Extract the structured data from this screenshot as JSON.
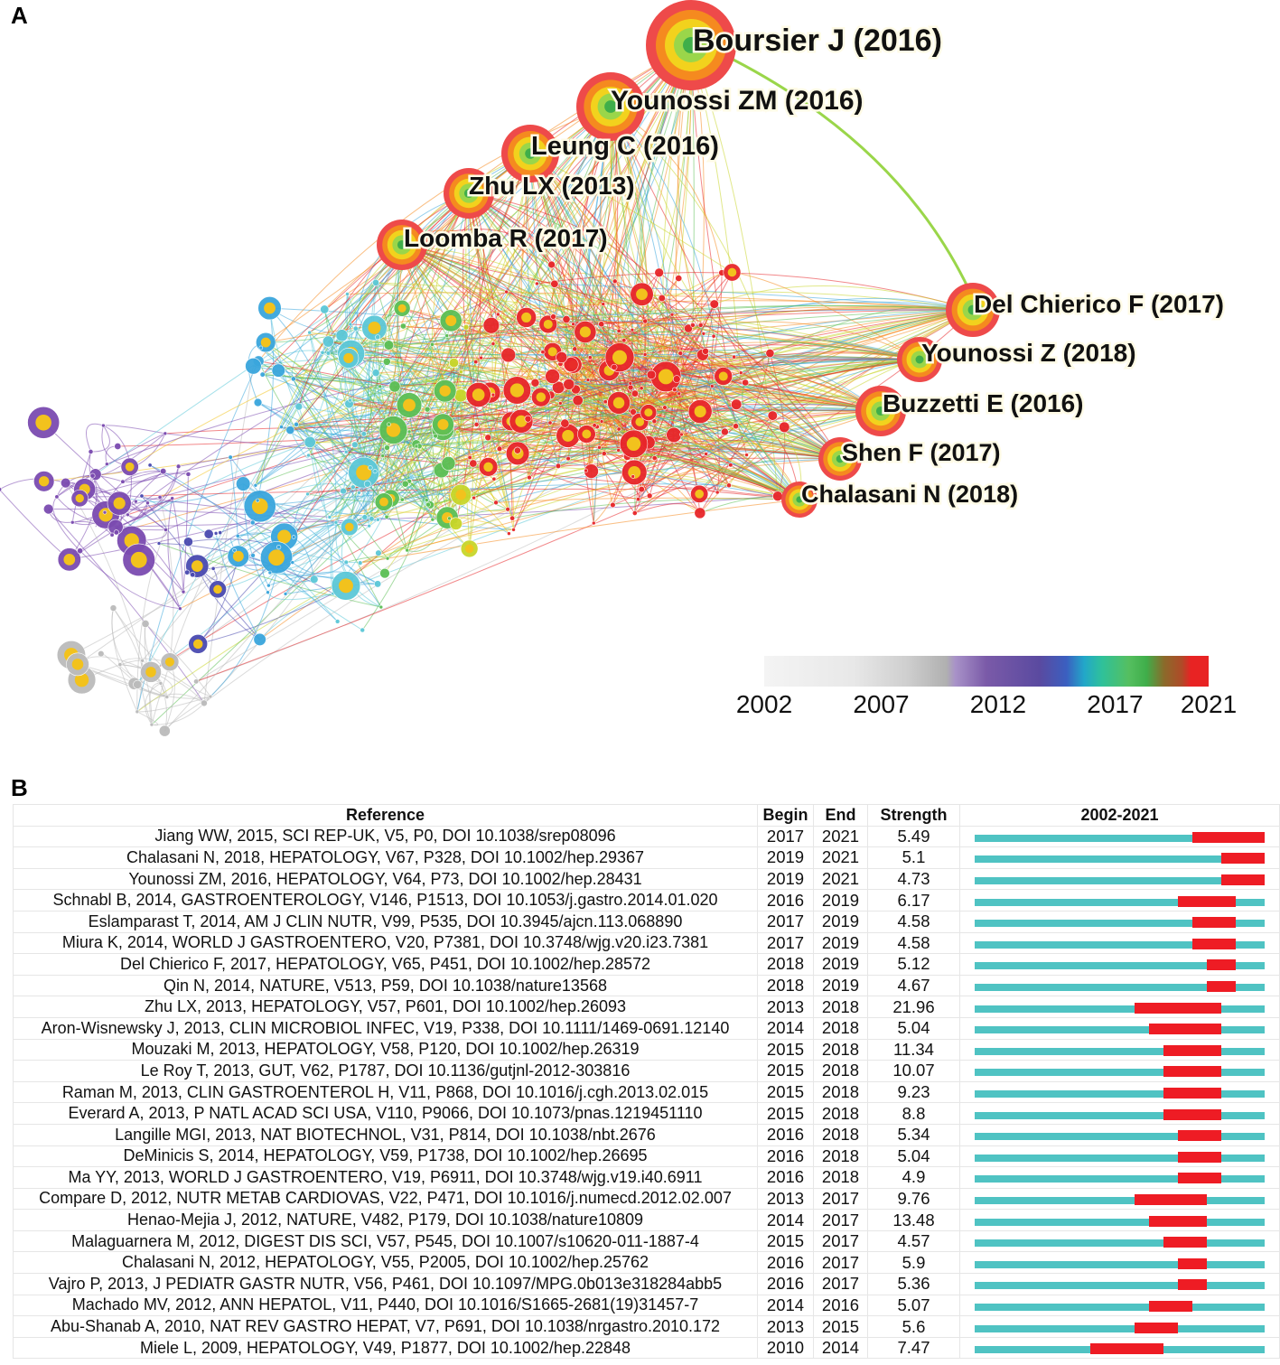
{
  "panels": {
    "a": "A",
    "b": "B"
  },
  "network": {
    "node_labels": [
      "Boursier J (2016)",
      "Younossi ZM (2016)",
      "Leung C (2016)",
      "Zhu LX (2013)",
      "Loomba R (2017)",
      "Del Chierico F (2017)",
      "Younossi Z (2018)",
      "Buzzetti E (2016)",
      "Shen F (2017)",
      "Chalasani N (2018)"
    ],
    "colorbar": {
      "ticks": [
        "2002",
        "2007",
        "2012",
        "2017",
        "2021"
      ],
      "range": [
        2002,
        2021
      ]
    }
  },
  "chart_data": {
    "type": "table",
    "columns": [
      "Reference",
      "Begin",
      "End",
      "Strength",
      "2002-2021"
    ],
    "timeline_range": [
      2002,
      2021
    ],
    "colors": {
      "baseline": "#4fc3c3",
      "burst": "#ee1c24"
    },
    "rows": [
      {
        "reference": "Jiang WW, 2015, SCI REP-UK, V5, P0, DOI 10.1038/srep08096",
        "begin": 2017,
        "end": 2021,
        "strength": "5.49"
      },
      {
        "reference": "Chalasani N, 2018, HEPATOLOGY, V67, P328, DOI 10.1002/hep.29367",
        "begin": 2019,
        "end": 2021,
        "strength": "5.1"
      },
      {
        "reference": "Younossi ZM, 2016, HEPATOLOGY, V64, P73, DOI 10.1002/hep.28431",
        "begin": 2019,
        "end": 2021,
        "strength": "4.73"
      },
      {
        "reference": "Schnabl B, 2014, GASTROENTEROLOGY, V146, P1513, DOI 10.1053/j.gastro.2014.01.020",
        "begin": 2016,
        "end": 2019,
        "strength": "6.17"
      },
      {
        "reference": "Eslamparast T, 2014, AM J CLIN NUTR, V99, P535, DOI 10.3945/ajcn.113.068890",
        "begin": 2017,
        "end": 2019,
        "strength": "4.58"
      },
      {
        "reference": "Miura K, 2014, WORLD J GASTROENTERO, V20, P7381, DOI 10.3748/wjg.v20.i23.7381",
        "begin": 2017,
        "end": 2019,
        "strength": "4.58"
      },
      {
        "reference": "Del Chierico F, 2017, HEPATOLOGY, V65, P451, DOI 10.1002/hep.28572",
        "begin": 2018,
        "end": 2019,
        "strength": "5.12"
      },
      {
        "reference": "Qin N, 2014, NATURE, V513, P59, DOI 10.1038/nature13568",
        "begin": 2018,
        "end": 2019,
        "strength": "4.67"
      },
      {
        "reference": "Zhu LX, 2013, HEPATOLOGY, V57, P601, DOI 10.1002/hep.26093",
        "begin": 2013,
        "end": 2018,
        "strength": "21.96"
      },
      {
        "reference": "Aron-Wisnewsky J, 2013, CLIN MICROBIOL INFEC, V19, P338, DOI 10.1111/1469-0691.12140",
        "begin": 2014,
        "end": 2018,
        "strength": "5.04"
      },
      {
        "reference": "Mouzaki M, 2013, HEPATOLOGY, V58, P120, DOI 10.1002/hep.26319",
        "begin": 2015,
        "end": 2018,
        "strength": "11.34"
      },
      {
        "reference": "Le Roy T, 2013, GUT, V62, P1787, DOI 10.1136/gutjnl-2012-303816",
        "begin": 2015,
        "end": 2018,
        "strength": "10.07"
      },
      {
        "reference": "Raman M, 2013, CLIN GASTROENTEROL H, V11, P868, DOI 10.1016/j.cgh.2013.02.015",
        "begin": 2015,
        "end": 2018,
        "strength": "9.23"
      },
      {
        "reference": "Everard A, 2013, P NATL ACAD SCI USA, V110, P9066, DOI 10.1073/pnas.1219451110",
        "begin": 2015,
        "end": 2018,
        "strength": "8.8"
      },
      {
        "reference": "Langille MGI, 2013, NAT BIOTECHNOL, V31, P814, DOI 10.1038/nbt.2676",
        "begin": 2016,
        "end": 2018,
        "strength": "5.34"
      },
      {
        "reference": "DeMinicis S, 2014, HEPATOLOGY, V59, P1738, DOI 10.1002/hep.26695",
        "begin": 2016,
        "end": 2018,
        "strength": "5.04"
      },
      {
        "reference": "Ma YY, 2013, WORLD J GASTROENTERO, V19, P6911, DOI 10.3748/wjg.v19.i40.6911",
        "begin": 2016,
        "end": 2018,
        "strength": "4.9"
      },
      {
        "reference": "Compare D, 2012, NUTR METAB CARDIOVAS, V22, P471, DOI 10.1016/j.numecd.2012.02.007",
        "begin": 2013,
        "end": 2017,
        "strength": "9.76"
      },
      {
        "reference": "Henao-Mejia J, 2012, NATURE, V482, P179, DOI 10.1038/nature10809",
        "begin": 2014,
        "end": 2017,
        "strength": "13.48"
      },
      {
        "reference": "Malaguarnera M, 2012, DIGEST DIS SCI, V57, P545, DOI 10.1007/s10620-011-1887-4",
        "begin": 2015,
        "end": 2017,
        "strength": "4.57"
      },
      {
        "reference": "Chalasani N, 2012, HEPATOLOGY, V55, P2005, DOI 10.1002/hep.25762",
        "begin": 2016,
        "end": 2017,
        "strength": "5.9"
      },
      {
        "reference": "Vajro P, 2013, J PEDIATR GASTR NUTR, V56, P461, DOI 10.1097/MPG.0b013e318284abb5",
        "begin": 2016,
        "end": 2017,
        "strength": "5.36"
      },
      {
        "reference": "Machado MV, 2012, ANN HEPATOL, V11, P440, DOI 10.1016/S1665-2681(19)31457-7",
        "begin": 2014,
        "end": 2016,
        "strength": "5.07"
      },
      {
        "reference": "Abu-Shanab A, 2010, NAT REV GASTRO HEPAT, V7, P691, DOI 10.1038/nrgastro.2010.172",
        "begin": 2013,
        "end": 2015,
        "strength": "5.6"
      },
      {
        "reference": "Miele L, 2009, HEPATOLOGY, V49, P1877, DOI 10.1002/hep.22848",
        "begin": 2010,
        "end": 2014,
        "strength": "7.47"
      }
    ]
  }
}
